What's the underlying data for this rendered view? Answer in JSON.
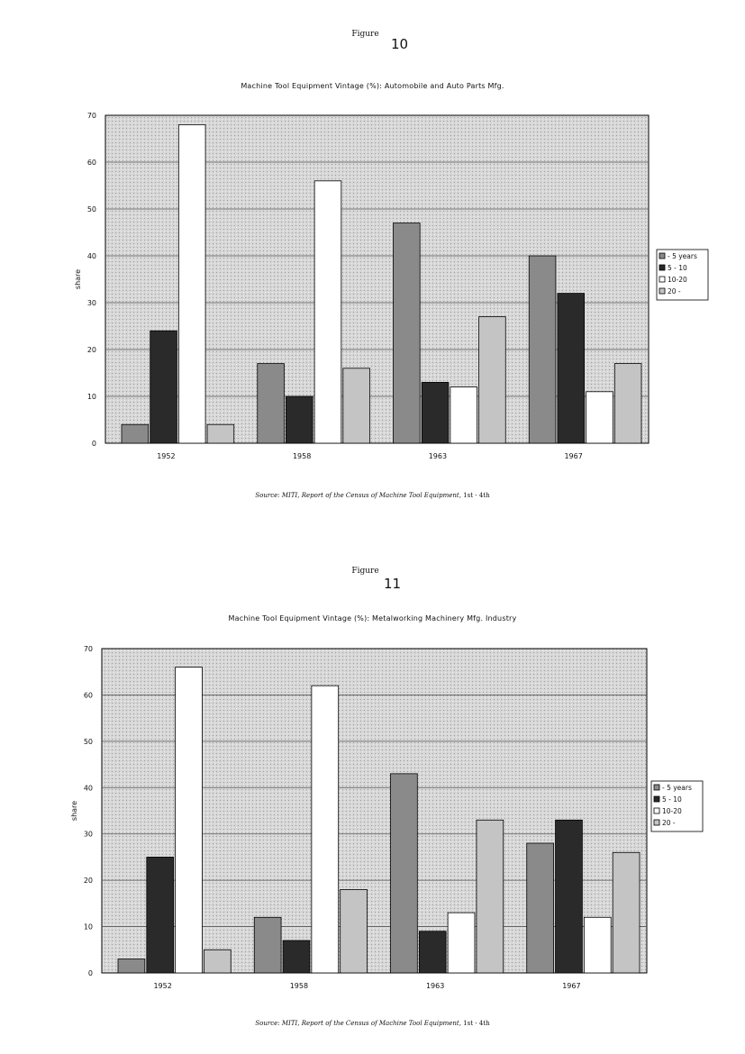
{
  "figures": [
    {
      "figure_label": "Figure",
      "figure_number": "10",
      "title": "Machine Tool Equipment Vintage (%): Automobile and Auto Parts Mfg.",
      "source_prefix": "Source: MITI,",
      "source_title": "Report of the Census of Machine Tool Equipment,",
      "source_suffix": "1st - 4th"
    },
    {
      "figure_label": "Figure",
      "figure_number": "11",
      "title": "Machine Tool Equipment Vintage (%): Metalworking Machinery Mfg. Industry",
      "source_prefix": "Source: MITI,",
      "source_title": "Report of the Census of Machine Tool Equipment,",
      "source_suffix": "1st - 4th"
    }
  ],
  "chart_data": [
    {
      "type": "bar",
      "ylabel": "share",
      "ylim": [
        0,
        70
      ],
      "yticks": [
        0,
        10,
        20,
        30,
        40,
        50,
        60,
        70
      ],
      "categories": [
        "1952",
        "1958",
        "1963",
        "1967"
      ],
      "series": [
        {
          "name": "- 5 years",
          "values": [
            4,
            17,
            47,
            40
          ],
          "fill": "#8a8a8a"
        },
        {
          "name": "5 - 10",
          "values": [
            24,
            10,
            13,
            32
          ],
          "fill": "#2a2a2a"
        },
        {
          "name": "10-20",
          "values": [
            68,
            56,
            12,
            11
          ],
          "fill": "#ffffff"
        },
        {
          "name": "20 -",
          "values": [
            4,
            16,
            27,
            17
          ],
          "fill": "#c4c4c4"
        }
      ],
      "legend_position": "right",
      "grid": true
    },
    {
      "type": "bar",
      "ylabel": "share",
      "ylim": [
        0,
        70
      ],
      "yticks": [
        0,
        10,
        20,
        30,
        40,
        50,
        60,
        70
      ],
      "categories": [
        "1952",
        "1958",
        "1963",
        "1967"
      ],
      "series": [
        {
          "name": "- 5 years",
          "values": [
            3,
            12,
            43,
            28
          ],
          "fill": "#8a8a8a"
        },
        {
          "name": "5 - 10",
          "values": [
            25,
            7,
            9,
            33
          ],
          "fill": "#2a2a2a"
        },
        {
          "name": "10-20",
          "values": [
            66,
            62,
            13,
            12
          ],
          "fill": "#ffffff"
        },
        {
          "name": "20 -",
          "values": [
            5,
            18,
            33,
            26
          ],
          "fill": "#c4c4c4"
        }
      ],
      "legend_position": "right",
      "grid": true
    }
  ],
  "colors": {
    "plot_background": "#d7d7d7",
    "bar_outline": "#000000",
    "gridline": "#555555"
  }
}
